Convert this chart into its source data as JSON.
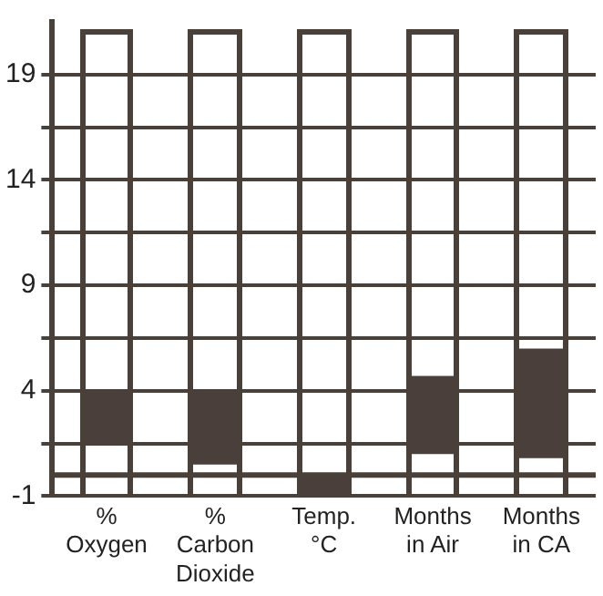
{
  "chart_data": {
    "type": "bar",
    "categories": [
      "%\nOxygen",
      "%\nCarbon\nDioxide",
      "Temp.\n°C",
      "Months\nin Air",
      "Months\nin CA"
    ],
    "values": [
      2.5,
      3.5,
      1,
      3.7,
      5.2
    ],
    "base": [
      1.5,
      0.5,
      -1,
      1,
      0.8
    ],
    "color": "#4a3f3a",
    "ylim": [
      -1,
      21.5
    ],
    "yticks": [
      -1,
      {
        "value": 1.5,
        "label": null
      },
      4,
      {
        "value": 6.5,
        "label": null
      },
      9,
      {
        "value": 11.5,
        "label": null
      },
      14,
      {
        "value": 16.5,
        "label": null
      },
      19
    ],
    "grid": "y",
    "ref_lines": [
      {
        "axis": "y",
        "value": 0,
        "label": null
      }
    ]
  }
}
